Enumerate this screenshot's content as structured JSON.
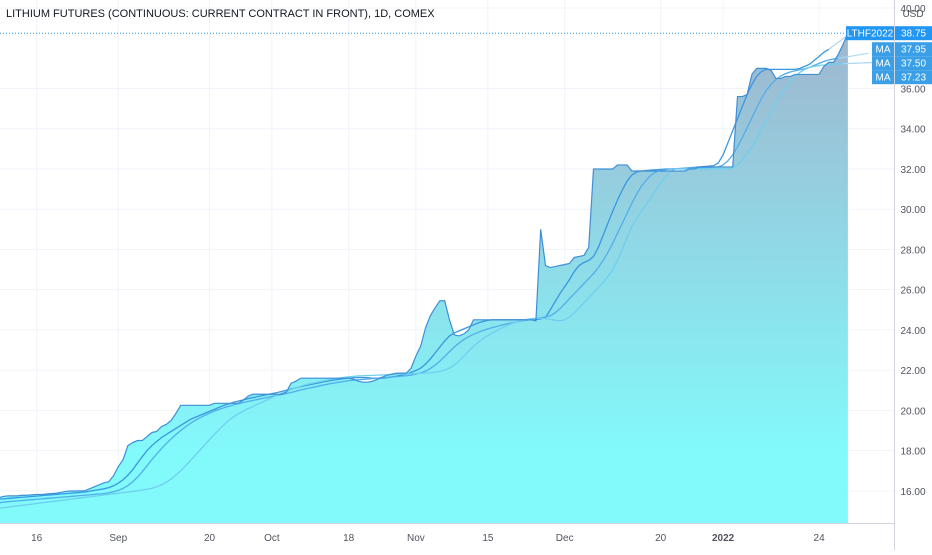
{
  "chart_data": {
    "type": "area",
    "title": "LITHIUM FUTURES (CONTINUOUS: CURRENT CONTRACT IN FRONT), 1D, COMEX",
    "currency": "USD",
    "symbol": "LTHF2022",
    "x_tick_labels": [
      "16",
      "Sep",
      "20",
      "Oct",
      "18",
      "Nov",
      "15",
      "Dec",
      "20",
      "2022",
      "24"
    ],
    "x_tick_index": [
      9,
      26,
      45,
      58,
      74,
      88,
      103,
      119,
      139,
      152,
      172
    ],
    "y_ticks": [
      16.0,
      18.0,
      20.0,
      22.0,
      24.0,
      26.0,
      28.0,
      30.0,
      32.0,
      34.0,
      36.0,
      40.0
    ],
    "ylim": [
      14.4,
      40.4
    ],
    "grid": true,
    "colors": {
      "price_line": "#3e8fd6",
      "area_top": "#9fb6cf",
      "area_bottom": "#82f9fb",
      "ma_fast": "#3a97e0",
      "ma_mid": "#52aeea",
      "ma_slow": "#6fcfee",
      "ma_overshoot": "#aed7f3",
      "tag_price": "#2196f3",
      "tag_ma": "#3b9fe7",
      "dotted_line": "#2196f3"
    },
    "series": [
      {
        "name": "LTHF2022",
        "last_value": 38.75,
        "values": [
          15.65,
          15.65,
          15.72,
          15.75,
          15.75,
          15.75,
          15.78,
          15.78,
          15.8,
          15.82,
          15.82,
          15.84,
          15.86,
          15.88,
          15.92,
          15.97,
          15.99,
          15.99,
          16.0,
          16.0,
          16.1,
          16.2,
          16.3,
          16.4,
          16.45,
          16.75,
          17.2,
          17.55,
          18.25,
          18.4,
          18.5,
          18.5,
          18.7,
          18.9,
          18.95,
          19.2,
          19.3,
          19.5,
          19.85,
          20.25,
          20.25,
          20.25,
          20.25,
          20.25,
          20.25,
          20.25,
          20.35,
          20.35,
          20.35,
          20.35,
          20.35,
          20.35,
          20.5,
          20.7,
          20.8,
          20.8,
          20.8,
          20.8,
          20.8,
          20.8,
          20.8,
          20.9,
          21.35,
          21.45,
          21.6,
          21.6,
          21.6,
          21.6,
          21.6,
          21.6,
          21.6,
          21.6,
          21.6,
          21.6,
          21.6,
          21.55,
          21.45,
          21.4,
          21.4,
          21.45,
          21.55,
          21.65,
          21.75,
          21.8,
          21.85,
          21.85,
          21.85,
          22.1,
          22.7,
          23.2,
          24.1,
          24.7,
          25.1,
          25.45,
          25.45,
          24.5,
          23.75,
          23.7,
          23.8,
          24.0,
          24.5,
          24.5,
          24.5,
          24.5,
          24.5,
          24.5,
          24.5,
          24.5,
          24.5,
          24.5,
          24.5,
          24.5,
          24.5,
          24.45,
          29.0,
          27.2,
          27.1,
          27.15,
          27.2,
          27.25,
          27.3,
          27.6,
          27.65,
          27.7,
          28.1,
          32.0,
          32.0,
          32.0,
          32.0,
          32.0,
          32.2,
          32.2,
          32.2,
          31.9,
          31.9,
          31.9,
          31.9,
          31.9,
          31.9,
          31.9,
          31.9,
          31.9,
          31.9,
          31.9,
          31.9,
          32.0,
          32.0,
          32.1,
          32.1,
          32.1,
          32.1,
          32.1,
          32.1,
          32.1,
          32.1,
          35.6,
          35.6,
          35.7,
          36.7,
          37.0,
          37.0,
          37.0,
          36.9,
          36.5,
          36.5,
          36.6,
          36.6,
          36.7,
          36.7,
          36.7,
          36.7,
          36.7,
          36.7,
          37.1,
          37.3,
          37.3,
          37.7,
          38.2,
          38.75
        ]
      },
      {
        "name": "MA",
        "last_value": 37.95,
        "values": [
          15.55,
          15.58,
          15.6,
          15.62,
          15.64,
          15.66,
          15.68,
          15.7,
          15.72,
          15.74,
          15.76,
          15.78,
          15.8,
          15.82,
          15.84,
          15.86,
          15.88,
          15.9,
          15.92,
          15.94,
          15.98,
          16.02,
          16.06,
          16.1,
          16.16,
          16.25,
          16.38,
          16.55,
          16.78,
          17.05,
          17.38,
          17.7,
          18.0,
          18.25,
          18.45,
          18.65,
          18.8,
          18.95,
          19.1,
          19.25,
          19.4,
          19.55,
          19.65,
          19.75,
          19.85,
          19.95,
          20.05,
          20.15,
          20.25,
          20.32,
          20.4,
          20.46,
          20.52,
          20.58,
          20.63,
          20.68,
          20.73,
          20.78,
          20.83,
          20.88,
          20.94,
          21.0,
          21.06,
          21.12,
          21.18,
          21.23,
          21.28,
          21.33,
          21.38,
          21.43,
          21.47,
          21.51,
          21.55,
          21.58,
          21.6,
          21.62,
          21.63,
          21.63,
          21.62,
          21.6,
          21.6,
          21.6,
          21.62,
          21.66,
          21.7,
          21.75,
          21.8,
          21.88,
          21.98,
          22.1,
          22.3,
          22.55,
          22.85,
          23.15,
          23.45,
          23.7,
          23.85,
          23.95,
          24.05,
          24.15,
          24.25,
          24.35,
          24.42,
          24.48,
          24.5,
          24.5,
          24.5,
          24.5,
          24.5,
          24.5,
          24.5,
          24.5,
          24.5,
          24.52,
          24.55,
          24.62,
          25.0,
          25.4,
          25.8,
          26.15,
          26.5,
          26.9,
          27.2,
          27.35,
          27.45,
          27.65,
          28.1,
          28.7,
          29.3,
          29.9,
          30.45,
          30.95,
          31.4,
          31.7,
          31.85,
          31.9,
          31.92,
          31.94,
          31.96,
          31.98,
          32.0,
          32.0,
          32.0,
          32.02,
          32.04,
          32.06,
          32.08,
          32.1,
          32.12,
          32.14,
          32.16,
          32.3,
          32.7,
          33.3,
          33.9,
          34.5,
          35.1,
          35.7,
          36.2,
          36.6,
          36.85,
          36.95,
          36.95,
          36.95,
          36.95,
          36.95,
          36.95,
          36.95,
          37.0,
          37.1,
          37.2,
          37.4,
          37.6,
          37.8,
          37.95
        ]
      },
      {
        "name": "MA",
        "last_value": 37.5,
        "values": [
          15.38,
          15.4,
          15.43,
          15.46,
          15.48,
          15.5,
          15.52,
          15.54,
          15.56,
          15.58,
          15.6,
          15.62,
          15.64,
          15.66,
          15.68,
          15.7,
          15.72,
          15.74,
          15.76,
          15.78,
          15.8,
          15.82,
          15.84,
          15.86,
          15.9,
          15.95,
          16.02,
          16.12,
          16.26,
          16.45,
          16.68,
          16.95,
          17.25,
          17.55,
          17.83,
          18.1,
          18.35,
          18.58,
          18.8,
          19.0,
          19.18,
          19.35,
          19.5,
          19.63,
          19.75,
          19.86,
          19.96,
          20.05,
          20.13,
          20.2,
          20.27,
          20.33,
          20.39,
          20.44,
          20.49,
          20.54,
          20.59,
          20.64,
          20.69,
          20.74,
          20.79,
          20.84,
          20.89,
          20.95,
          21.01,
          21.07,
          21.12,
          21.17,
          21.22,
          21.27,
          21.32,
          21.36,
          21.4,
          21.44,
          21.47,
          21.5,
          21.52,
          21.54,
          21.56,
          21.58,
          21.6,
          21.62,
          21.64,
          21.66,
          21.68,
          21.7,
          21.72,
          21.75,
          21.8,
          21.86,
          21.95,
          22.08,
          22.25,
          22.45,
          22.68,
          22.92,
          23.15,
          23.35,
          23.52,
          23.66,
          23.78,
          23.88,
          23.97,
          24.05,
          24.12,
          24.18,
          24.24,
          24.3,
          24.35,
          24.4,
          24.44,
          24.48,
          24.52,
          24.56,
          24.6,
          24.64,
          24.7,
          24.85,
          25.05,
          25.3,
          25.55,
          25.8,
          26.05,
          26.3,
          26.55,
          26.8,
          27.1,
          27.45,
          27.85,
          28.3,
          28.8,
          29.3,
          29.8,
          30.3,
          30.75,
          31.15,
          31.45,
          31.7,
          31.85,
          31.93,
          31.97,
          32.0,
          32.01,
          32.02,
          32.03,
          32.04,
          32.05,
          32.06,
          32.07,
          32.08,
          32.09,
          32.1,
          32.2,
          32.4,
          32.7,
          33.1,
          33.55,
          34.05,
          34.55,
          35.05,
          35.5,
          35.9,
          36.2,
          36.45,
          36.62,
          36.74,
          36.82,
          36.88,
          36.93,
          36.98,
          37.05,
          37.15,
          37.25,
          37.35,
          37.42,
          37.47,
          37.5
        ]
      },
      {
        "name": "MA",
        "last_value": 37.23,
        "values": [
          15.1,
          15.13,
          15.16,
          15.19,
          15.22,
          15.25,
          15.28,
          15.31,
          15.34,
          15.37,
          15.4,
          15.43,
          15.46,
          15.49,
          15.52,
          15.55,
          15.58,
          15.61,
          15.64,
          15.67,
          15.7,
          15.73,
          15.76,
          15.79,
          15.82,
          15.85,
          15.88,
          15.91,
          15.94,
          15.97,
          16.0,
          16.04,
          16.08,
          16.13,
          16.2,
          16.3,
          16.42,
          16.58,
          16.78,
          17.0,
          17.24,
          17.5,
          17.76,
          18.02,
          18.28,
          18.54,
          18.8,
          19.05,
          19.28,
          19.5,
          19.68,
          19.83,
          19.96,
          20.08,
          20.19,
          20.3,
          20.41,
          20.52,
          20.63,
          20.74,
          20.85,
          20.95,
          21.04,
          21.12,
          21.2,
          21.27,
          21.33,
          21.38,
          21.43,
          21.48,
          21.53,
          21.57,
          21.61,
          21.64,
          21.67,
          21.69,
          21.71,
          21.72,
          21.73,
          21.74,
          21.75,
          21.76,
          21.77,
          21.78,
          21.79,
          21.8,
          21.81,
          21.82,
          21.83,
          21.84,
          21.85,
          21.87,
          21.9,
          21.94,
          22.0,
          22.1,
          22.25,
          22.45,
          22.7,
          22.95,
          23.18,
          23.38,
          23.56,
          23.72,
          23.86,
          23.99,
          24.11,
          24.22,
          24.32,
          24.4,
          24.47,
          24.52,
          24.56,
          24.58,
          24.58,
          24.56,
          24.52,
          24.48,
          24.45,
          24.5,
          24.65,
          24.85,
          25.1,
          25.35,
          25.6,
          25.85,
          26.1,
          26.35,
          26.65,
          27.0,
          27.45,
          28.0,
          28.6,
          29.15,
          29.55,
          29.9,
          30.25,
          30.6,
          30.95,
          31.3,
          31.6,
          31.85,
          32.0,
          32.0,
          32.0,
          32.0,
          32.0,
          32.0,
          32.0,
          32.0,
          32.0,
          32.0,
          32.0,
          32.0,
          32.05,
          32.2,
          32.45,
          32.75,
          33.1,
          33.5,
          33.95,
          34.4,
          34.85,
          35.3,
          35.7,
          36.05,
          36.35,
          36.6,
          36.8,
          36.95,
          37.05,
          37.1,
          37.14,
          37.17,
          37.19,
          37.21,
          37.22,
          37.23
        ]
      }
    ]
  }
}
